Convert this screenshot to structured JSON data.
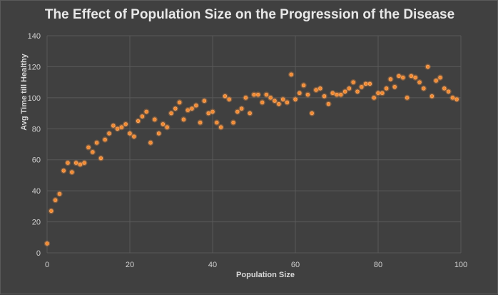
{
  "colors": {
    "background": "#404040",
    "grid": "#595959",
    "marker": "#f58a2e",
    "marker_glow": "#f7b27a"
  },
  "chart_data": {
    "type": "scatter",
    "title": "The Effect of Population Size on the Progression of the Disease",
    "xlabel": "Population  Size",
    "ylabel": "Avg Time till Healthy",
    "xlim": [
      0,
      100
    ],
    "ylim": [
      0,
      140
    ],
    "xticks": [
      0,
      20,
      40,
      60,
      80,
      100
    ],
    "yticks": [
      0,
      20,
      40,
      60,
      80,
      100,
      120,
      140
    ],
    "grid": true,
    "legend": "none",
    "series": [
      {
        "x": [
          0,
          1,
          2,
          3,
          4,
          5,
          6,
          7,
          8,
          9,
          10,
          11,
          12,
          13,
          14,
          15,
          16,
          17,
          18,
          19,
          20,
          21,
          22,
          23,
          24,
          25,
          26,
          27,
          28,
          29,
          30,
          31,
          32,
          33,
          34,
          35,
          36,
          37,
          38,
          39,
          40,
          41,
          42,
          43,
          44,
          45,
          46,
          47,
          48,
          49,
          50,
          51,
          52,
          53,
          54,
          55,
          56,
          57,
          58,
          59,
          60,
          61,
          62,
          63,
          64,
          65,
          66,
          67,
          68,
          69,
          70,
          71,
          72,
          73,
          74,
          75,
          76,
          77,
          78,
          79,
          80,
          81,
          82,
          83,
          84,
          85,
          86,
          87,
          88,
          89,
          90,
          91,
          92,
          93,
          94,
          95,
          96,
          97,
          98,
          99
        ],
        "y": [
          6,
          27,
          34,
          38,
          53,
          58,
          52,
          58,
          57,
          58,
          68,
          65,
          71,
          61,
          73,
          77,
          82,
          80,
          81,
          83,
          77,
          75,
          85,
          88,
          91,
          71,
          86,
          77,
          83,
          81,
          90,
          93,
          97,
          86,
          92,
          93,
          95,
          84,
          98,
          90,
          91,
          84,
          81,
          101,
          99,
          84,
          91,
          93,
          100,
          90,
          102,
          102,
          97,
          102,
          100,
          98,
          96,
          99,
          97,
          115,
          99,
          103,
          108,
          102,
          90,
          105,
          106,
          101,
          96,
          103,
          102,
          102,
          104,
          106,
          110,
          104,
          107,
          109,
          109,
          100,
          103,
          103,
          106,
          112,
          107,
          114,
          113,
          100,
          114,
          113,
          110,
          106,
          120,
          101,
          111,
          113,
          106,
          104,
          100,
          99
        ]
      }
    ]
  }
}
